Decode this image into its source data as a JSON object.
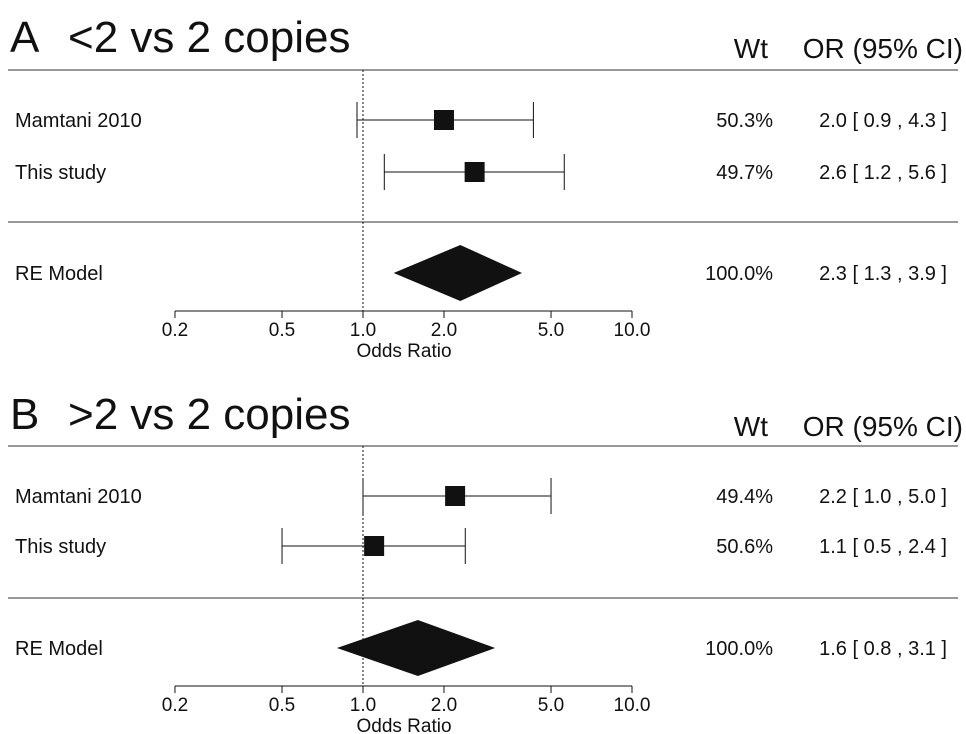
{
  "colors": {
    "ink": "#111111",
    "rule": "#333333",
    "background": "#ffffff"
  },
  "chart_data": [
    {
      "type": "forest",
      "panel_letter": "A",
      "title": "<2 vs 2 copies",
      "column_headers": {
        "weight": "Wt",
        "estimate": "OR (95% CI)"
      },
      "x_scale": "log",
      "xlim": [
        0.2,
        10.0
      ],
      "x_ticks": [
        0.2,
        0.5,
        1.0,
        2.0,
        5.0,
        10.0
      ],
      "x_tick_labels": [
        "0.2",
        "0.5",
        "1.0",
        "2.0",
        "5.0",
        "10.0"
      ],
      "xlabel": "Odds Ratio",
      "reference_line": 1.0,
      "studies": [
        {
          "label": "Mamtani 2010",
          "or": 2.0,
          "lower": 0.95,
          "upper": 4.3,
          "weight_text": "50.3%",
          "ci_text": "2.0 [ 0.9 , 4.3 ]"
        },
        {
          "label": "This study",
          "or": 2.6,
          "lower": 1.2,
          "upper": 5.6,
          "weight_text": "49.7%",
          "ci_text": "2.6 [ 1.2 , 5.6 ]"
        }
      ],
      "pooled": {
        "label": "RE Model",
        "or": 2.3,
        "lower": 1.3,
        "upper": 3.9,
        "weight_text": "100.0%",
        "ci_text": "2.3 [ 1.3 , 3.9 ]"
      }
    },
    {
      "type": "forest",
      "panel_letter": "B",
      "title": ">2 vs 2 copies",
      "column_headers": {
        "weight": "Wt",
        "estimate": "OR (95% CI)"
      },
      "x_scale": "log",
      "xlim": [
        0.2,
        10.0
      ],
      "x_ticks": [
        0.2,
        0.5,
        1.0,
        2.0,
        5.0,
        10.0
      ],
      "x_tick_labels": [
        "0.2",
        "0.5",
        "1.0",
        "2.0",
        "5.0",
        "10.0"
      ],
      "xlabel": "Odds Ratio",
      "reference_line": 1.0,
      "studies": [
        {
          "label": "Mamtani 2010",
          "or": 2.2,
          "lower": 1.0,
          "upper": 5.0,
          "weight_text": "49.4%",
          "ci_text": "2.2 [ 1.0 , 5.0 ]"
        },
        {
          "label": "This study",
          "or": 1.1,
          "lower": 0.5,
          "upper": 2.4,
          "weight_text": "50.6%",
          "ci_text": "1.1 [ 0.5 , 2.4 ]"
        }
      ],
      "pooled": {
        "label": "RE Model",
        "or": 1.6,
        "lower": 0.8,
        "upper": 3.1,
        "weight_text": "100.0%",
        "ci_text": "1.6 [ 0.8 , 3.1 ]"
      }
    }
  ]
}
